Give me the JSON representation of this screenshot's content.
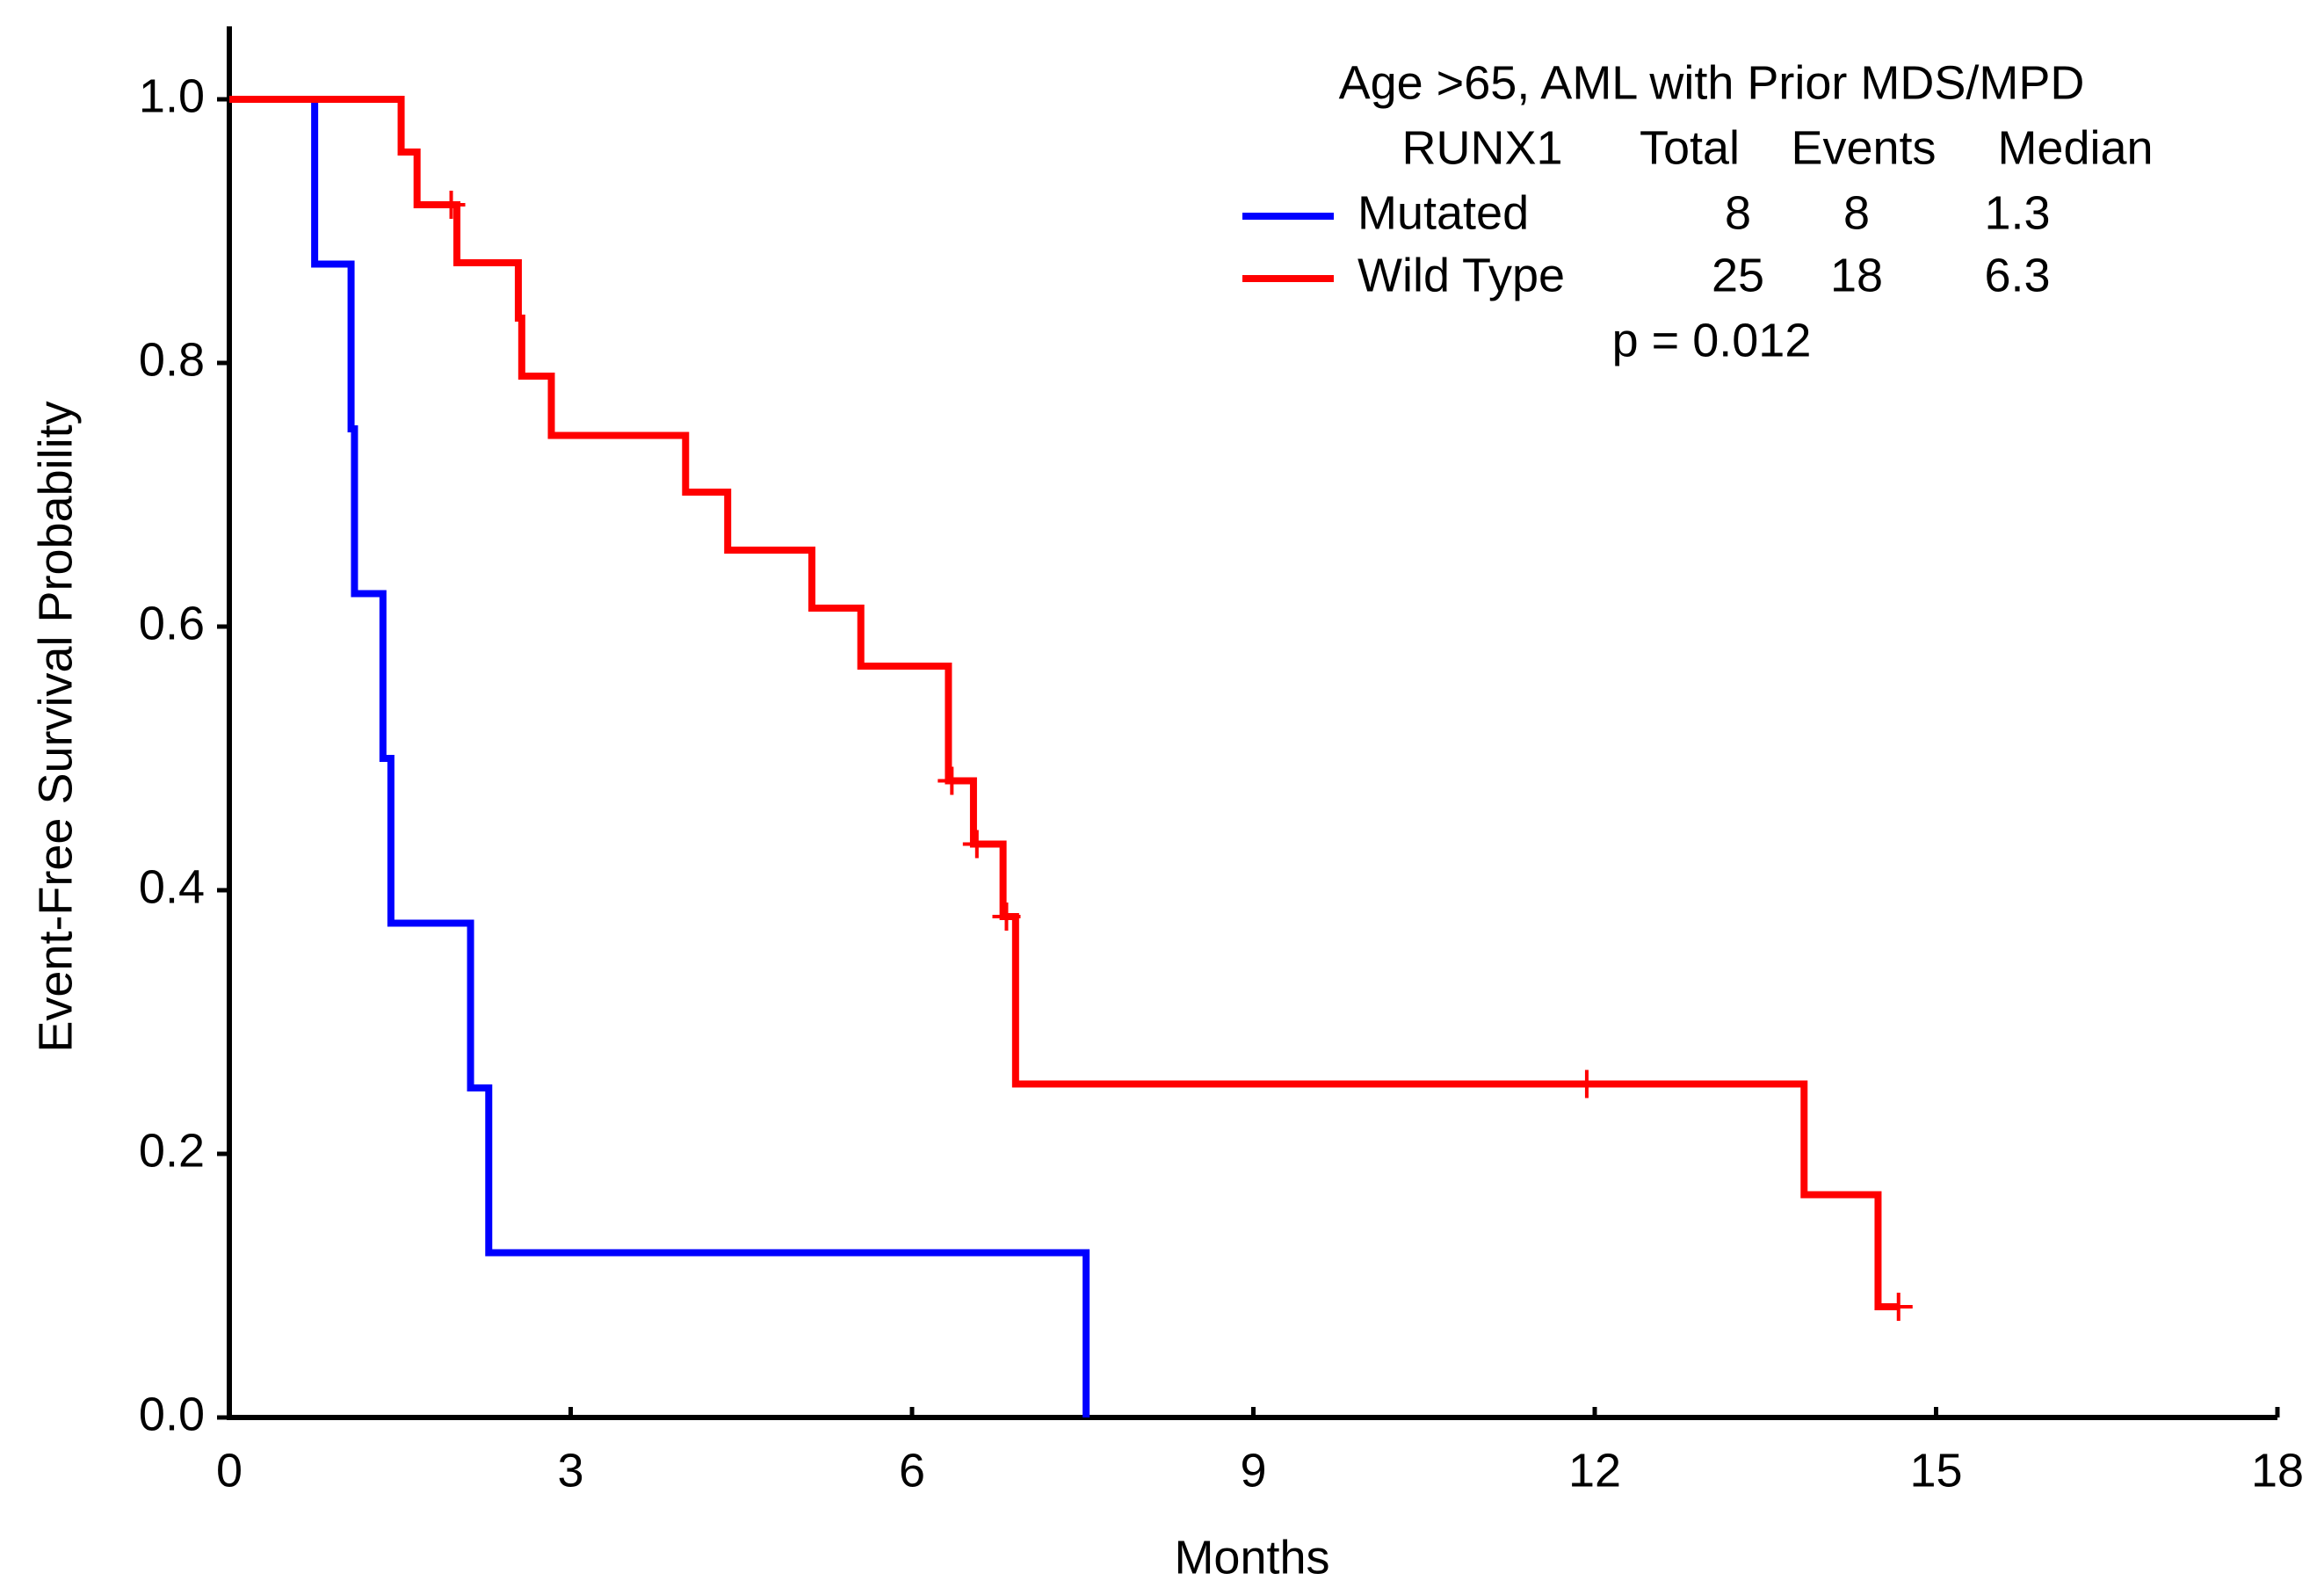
{
  "chart_data": {
    "type": "km",
    "x_label": "Months",
    "y_label": "Event-Free Survival Probability",
    "xlim": [
      0,
      18
    ],
    "xticks": [
      0,
      3,
      6,
      9,
      12,
      15,
      18
    ],
    "ylim": [
      0,
      1.05
    ],
    "yticks": [
      {
        "value": 0,
        "label": "0.0"
      },
      0.2,
      0.4,
      0.6,
      0.8,
      {
        "value": 1,
        "label": "1.0"
      }
    ],
    "legend_title": "Age >65, AML with Prior MDS/MPD",
    "legend_columns": [
      "RUNX1",
      "Total",
      "Events",
      "Median"
    ],
    "p_value_text": "p = 0.012",
    "series": [
      {
        "name": "Mutated",
        "color": "#0000ff",
        "total": 8,
        "events": 8,
        "median": 1.3,
        "x": [
          0,
          0.75,
          1.07,
          1.1,
          1.35,
          1.42,
          2.12,
          2.28,
          7.53
        ],
        "values": [
          1,
          0.875,
          0.75,
          0.625,
          0.5,
          0.375,
          0.25,
          0.125,
          0
        ],
        "censored": {
          "x": [],
          "values": []
        }
      },
      {
        "name": "Wild Type",
        "color": "#ff0000",
        "total": 25,
        "events": 18,
        "median": 6.3,
        "x": [
          0,
          1.51,
          1.65,
          2.0,
          2.54,
          2.57,
          2.83,
          4.01,
          4.38,
          5.12,
          5.55,
          6.32,
          6.54,
          6.8,
          6.91,
          13.84,
          14.49,
          14.67
        ],
        "values": [
          1,
          0.96,
          0.92,
          0.876,
          0.834,
          0.79,
          0.745,
          0.702,
          0.658,
          0.614,
          0.57,
          0.483,
          0.435,
          0.38,
          0.253,
          0.169,
          0.084,
          0.084
        ],
        "censored": {
          "x": [
            1.95,
            6.35,
            6.57,
            6.83,
            11.93,
            14.67
          ],
          "values": [
            0.92,
            0.483,
            0.435,
            0.38,
            0.253,
            0.084
          ]
        }
      }
    ]
  }
}
